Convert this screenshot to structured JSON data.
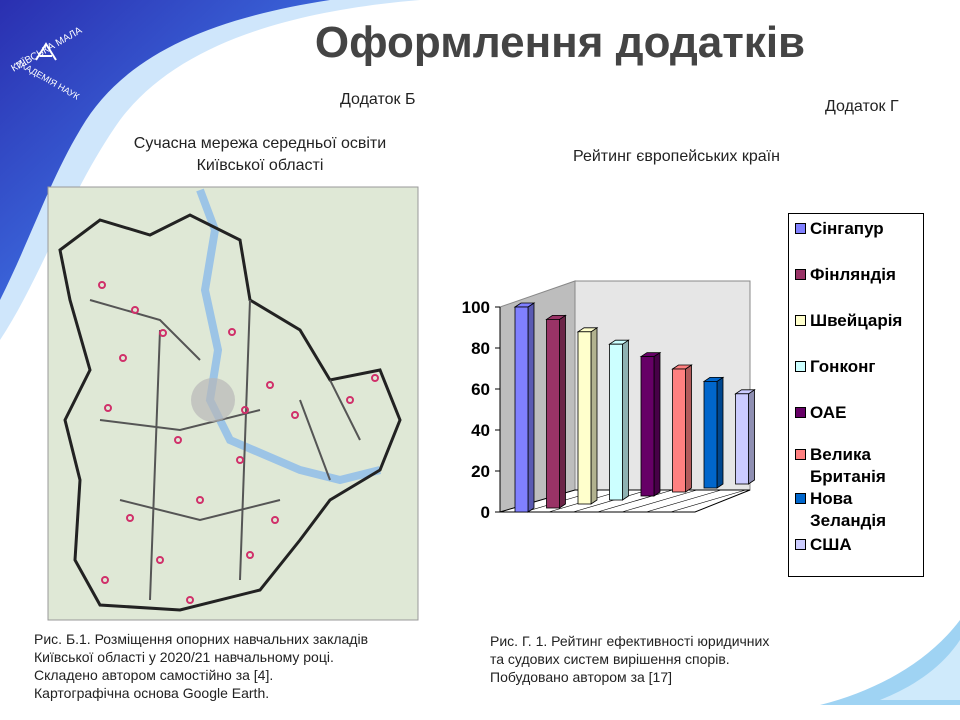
{
  "title": "Оформлення додатків",
  "logo": [
    "КИЇВСЬКА МАЛА",
    "АКАДЕМІЯ НАУК"
  ],
  "appendix_b": {
    "label": "Додаток Б",
    "heading": [
      "Сучасна мережа середньої освіти",
      "Київської області"
    ],
    "caption": [
      "Рис. Б.1. Розміщення опорних навчальних закладів",
      "Київської області у 2020/21 навчальному році.",
      "Складено автором самостійно за [4].",
      "Картографічна основа Google Earth."
    ]
  },
  "appendix_g": {
    "label": "Додаток Г",
    "caption": [
      "Рис. Г. 1. Рейтинг ефективності юридичних",
      "та судових систем вирішення спорів.",
      "Побудовано автором за [17]"
    ]
  },
  "chart_data": {
    "type": "bar3d",
    "title": "Рейтинг європейських країн",
    "series": [
      {
        "name": "Сінгапур",
        "color": "#8080ff",
        "values": [
          100
        ]
      },
      {
        "name": "Фінляндія",
        "color": "#993366",
        "values": [
          92
        ]
      },
      {
        "name": "Швейцарія",
        "color": "#ffffcc",
        "values": [
          84
        ]
      },
      {
        "name": "Гонконг",
        "color": "#ccffff",
        "values": [
          76
        ]
      },
      {
        "name": "ОАЕ",
        "color": "#660066",
        "values": [
          68
        ]
      },
      {
        "name": "Велика Британія",
        "color": "#ff8080",
        "values": [
          60
        ]
      },
      {
        "name": "Нова Зеландія",
        "color": "#0066cc",
        "values": [
          52
        ]
      },
      {
        "name": "США",
        "color": "#ccccff",
        "values": [
          44
        ]
      }
    ],
    "ylim": [
      0,
      100
    ],
    "yticks": [
      0,
      20,
      40,
      60,
      80,
      100
    ],
    "grid": false,
    "legend": "right"
  }
}
